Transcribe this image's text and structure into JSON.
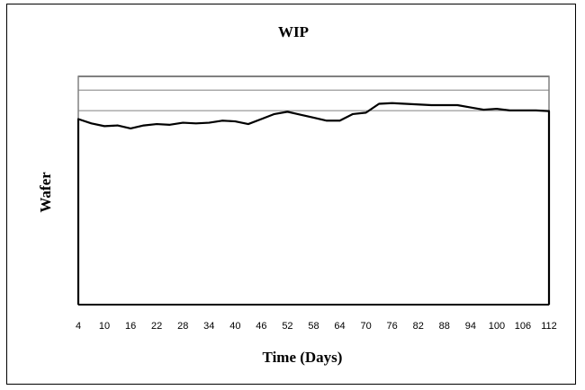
{
  "chart_data": {
    "type": "line",
    "title": "WIP",
    "xlabel": "Time (Days)",
    "ylabel": "Wafer",
    "x_ticks": [
      "4",
      "10",
      "16",
      "22",
      "28",
      "34",
      "40",
      "46",
      "52",
      "58",
      "64",
      "70",
      "76",
      "82",
      "88",
      "94",
      "100",
      "106",
      "112"
    ],
    "xlim": [
      4,
      112
    ],
    "ylim": [
      0,
      100
    ],
    "grid": false,
    "legend": "none",
    "colors": {
      "line": "#000000",
      "reference_lines": "#808080",
      "frame": "#000000"
    },
    "reference_lines": [
      85,
      94,
      100
    ],
    "series": [
      {
        "x": [
          4,
          7,
          10,
          13,
          16,
          19,
          22,
          25,
          28,
          31,
          34,
          37,
          40,
          43,
          46,
          49,
          52,
          55,
          58,
          61,
          64,
          67,
          70,
          73,
          76,
          79,
          82,
          85,
          88,
          91,
          94,
          97,
          100,
          103,
          106,
          109,
          112
        ],
        "y": [
          81.3,
          79.4,
          78.2,
          78.5,
          77.2,
          78.5,
          79.1,
          78.8,
          79.7,
          79.4,
          79.7,
          80.6,
          80.3,
          79.1,
          81.3,
          83.5,
          84.5,
          83.2,
          81.9,
          80.6,
          80.6,
          83.5,
          84.1,
          88.0,
          88.3,
          88.0,
          87.7,
          87.4,
          87.4,
          87.4,
          86.4,
          85.4,
          85.8,
          85.1,
          85.1,
          85.1,
          84.8
        ]
      }
    ]
  }
}
